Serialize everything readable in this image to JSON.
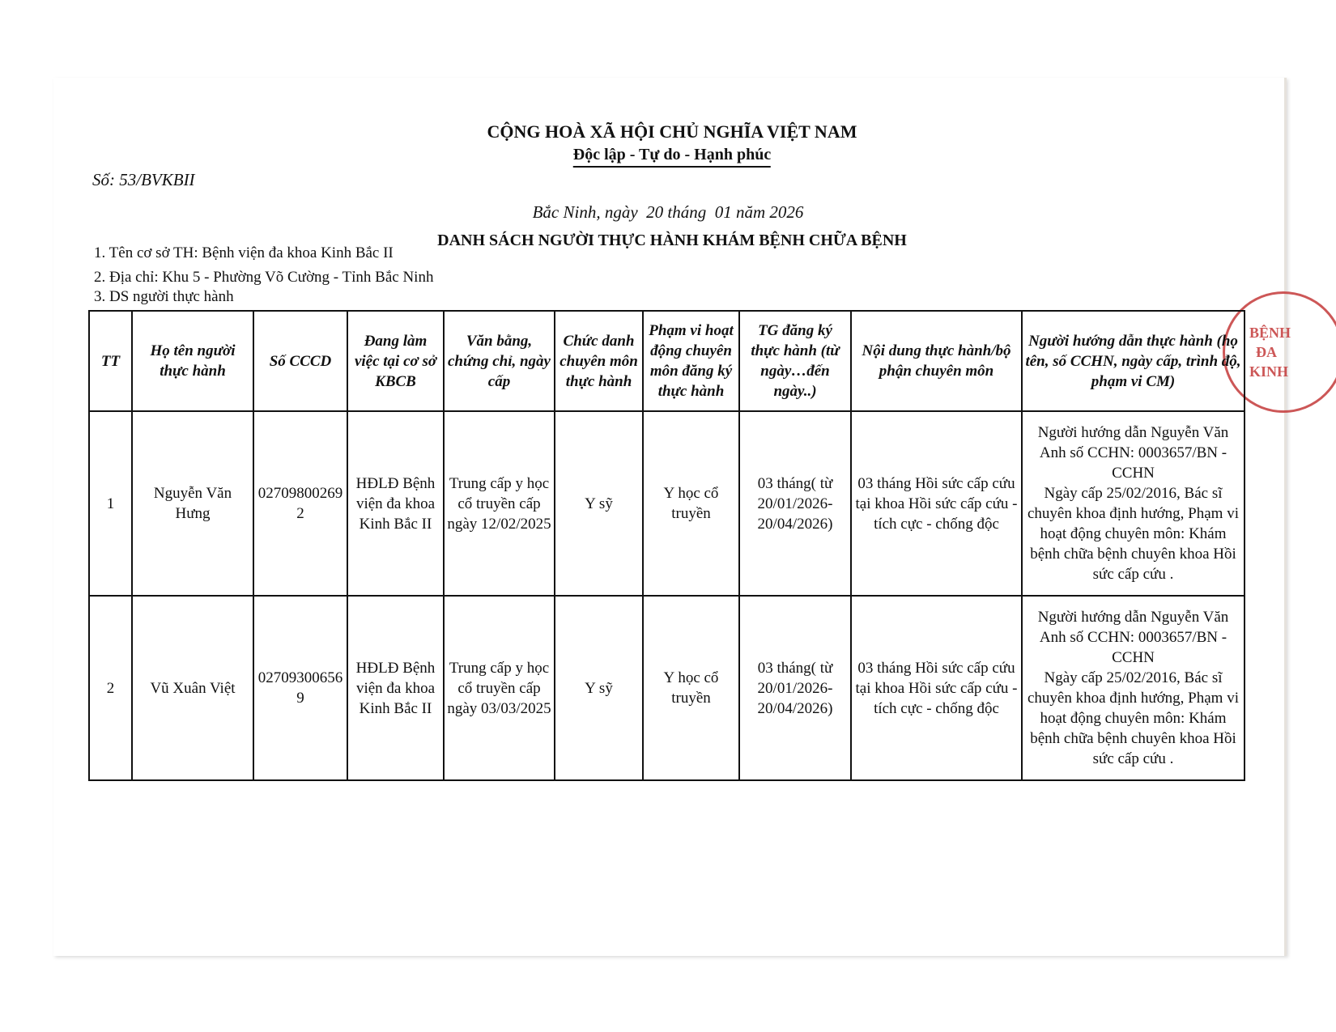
{
  "header": {
    "national": "CỘNG HOÀ XÃ HỘI CHỦ NGHĨA VIỆT NAM",
    "motto": "Độc lập - Tự do - Hạnh phúc",
    "number": "Số: 53/BVKBII",
    "date": "Bắc Ninh, ngày  20 tháng  01 năm 2026",
    "title": "DANH SÁCH NGƯỜI THỰC HÀNH KHÁM BỆNH CHỮA BỆNH"
  },
  "info": [
    "1. Tên cơ sở TH: Bệnh viện đa khoa Kinh Bắc II",
    "2. Địa chỉ: Khu 5 - Phường Võ Cường - Tỉnh Bắc Ninh",
    "3. DS người thực hành"
  ],
  "table": {
    "headers": [
      "TT",
      "Họ tên người thực hành",
      "Số CCCD",
      "Đang làm việc tại cơ sở KBCB",
      "Văn bằng, chứng chỉ, ngày cấp",
      "Chức danh chuyên môn thực hành",
      "Phạm vi hoạt động chuyên môn đăng ký thực hành",
      "TG đăng ký thực hành (từ ngày…đến ngày..)",
      "Nội dung thực hành/bộ phận chuyên môn",
      "Người hướng dẫn thực hành (họ tên, số CCHN, ngày cấp, trình độ, phạm vi CM)"
    ],
    "rows": [
      [
        "1",
        "Nguyễn Văn Hưng",
        "027098002692",
        "HĐLĐ Bệnh viện đa khoa Kinh Bắc II",
        "Trung cấp y học cổ truyền cấp ngày 12/02/2025",
        "Y sỹ",
        "Y học cổ truyền",
        "03 tháng( từ 20/01/2026-20/04/2026)",
        "03 tháng Hồi sức cấp cứu tại khoa Hồi sức cấp cứu - tích cực - chống độc",
        [
          "Người hướng dẫn Nguyễn Văn Anh số CCHN: 0003657/BN - CCHN",
          "Ngày cấp 25/02/2016, Bác sĩ chuyên khoa định hướng, Phạm vi hoạt động chuyên môn: Khám bệnh chữa bệnh chuyên khoa Hồi sức cấp cứu ."
        ]
      ],
      [
        "2",
        "Vũ Xuân Việt",
        "027093006569",
        "HĐLĐ Bệnh viện đa khoa Kinh Bắc II",
        "Trung cấp y học cổ truyền cấp ngày 03/03/2025",
        "Y sỹ",
        "Y học cổ truyền",
        "03 tháng( từ 20/01/2026-20/04/2026)",
        "03 tháng Hồi sức cấp cứu tại khoa Hồi sức cấp cứu - tích cực - chống độc",
        [
          "Người hướng dẫn Nguyễn Văn Anh số CCHN: 0003657/BN - CCHN",
          "Ngày cấp 25/02/2016, Bác sĩ chuyên khoa định hướng, Phạm vi hoạt động chuyên môn: Khám bệnh chữa bệnh chuyên khoa Hồi sức cấp cứu ."
        ]
      ]
    ]
  },
  "stamp": [
    "BỆNH",
    "ĐA",
    "KINH"
  ]
}
